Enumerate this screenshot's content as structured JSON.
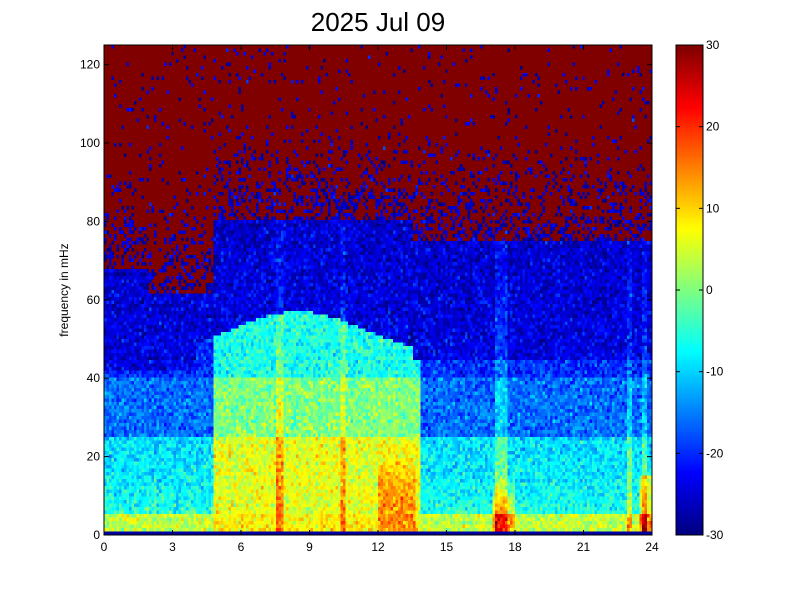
{
  "chart_data": {
    "type": "heatmap",
    "title": "2025 Jul 09",
    "xlabel": "",
    "ylabel": "frequency in mHz",
    "xlim": [
      0,
      24
    ],
    "ylim": [
      0,
      125
    ],
    "x_ticks": [
      0,
      3,
      6,
      9,
      12,
      15,
      18,
      21,
      24
    ],
    "y_ticks": [
      0,
      20,
      40,
      60,
      80,
      100,
      120
    ],
    "colorbar": {
      "colormap": "jet",
      "range": [
        -30,
        30
      ],
      "ticks": [
        -30,
        -20,
        -10,
        0,
        10,
        20,
        30
      ]
    },
    "grid": false,
    "description_of_values": "Spectrogram power (dB) vs hour of day (0-24) and frequency (mHz)",
    "key_features": [
      {
        "x_range": [
          0,
          24
        ],
        "y_range": [
          0,
          1
        ],
        "value": -28
      },
      {
        "x_range": [
          0,
          24
        ],
        "y_range": [
          1,
          5
        ],
        "value": 6
      },
      {
        "x_range": [
          5,
          13.5
        ],
        "y_range": [
          5,
          40
        ],
        "value": 8
      },
      {
        "x_range": [
          5,
          13
        ],
        "y_range": [
          40,
          57
        ],
        "value": -5
      },
      {
        "x_range": [
          0,
          24
        ],
        "y_range": [
          30,
          60
        ],
        "value": -22
      },
      {
        "x_range": [
          0,
          24
        ],
        "y_range": [
          60,
          80
        ],
        "value": -26
      },
      {
        "x_range": [
          0,
          24
        ],
        "y_range": [
          80,
          125
        ],
        "value": 30
      }
    ]
  }
}
